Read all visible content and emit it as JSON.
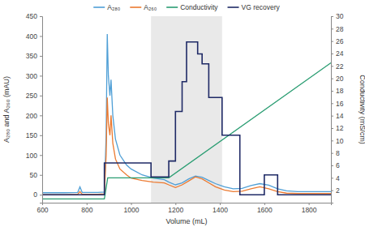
{
  "chart_data": {
    "type": "line",
    "xlabel": "Volume (mL)",
    "ylabel": "A₂₈₀ and A₂₆₀ (mAU)",
    "y2label": "Conductivity (mS/cm)",
    "xlim": [
      600,
      1900
    ],
    "xticks": [
      600,
      800,
      1000,
      1200,
      1400,
      1600,
      1800
    ],
    "ylim": [
      -20,
      450
    ],
    "yticks": [
      0,
      50,
      100,
      150,
      200,
      250,
      300,
      350,
      400,
      450
    ],
    "y2lim": [
      0,
      30
    ],
    "y2ticks": [
      2,
      4,
      6,
      8,
      10,
      12,
      14,
      16,
      18,
      20,
      22,
      24,
      26,
      28,
      30
    ],
    "highlight_x": [
      1090,
      1410
    ],
    "legend": "top",
    "grid": false,
    "series": [
      {
        "name": "A₂₈₀",
        "color": "#4f9fd6",
        "x": [
          600,
          700,
          760,
          770,
          780,
          850,
          880,
          888,
          893,
          898,
          905,
          910,
          918,
          930,
          950,
          980,
          1000,
          1050,
          1100,
          1150,
          1170,
          1200,
          1230,
          1260,
          1290,
          1320,
          1350,
          1380,
          1420,
          1460,
          1500,
          1540,
          1580,
          1620,
          1660,
          1700,
          1750,
          1800,
          1850,
          1900
        ],
        "values": [
          5,
          5,
          6,
          20,
          6,
          6,
          7,
          150,
          405,
          300,
          250,
          290,
          200,
          140,
          100,
          75,
          65,
          50,
          42,
          38,
          32,
          25,
          30,
          40,
          47,
          44,
          36,
          28,
          20,
          15,
          16,
          23,
          28,
          24,
          15,
          10,
          8,
          8,
          8,
          8
        ]
      },
      {
        "name": "A₂₆₀",
        "color": "#ec7a30",
        "x": [
          600,
          700,
          760,
          770,
          780,
          850,
          880,
          888,
          893,
          898,
          905,
          910,
          918,
          930,
          950,
          980,
          1000,
          1050,
          1100,
          1150,
          1170,
          1200,
          1230,
          1260,
          1290,
          1320,
          1350,
          1380,
          1420,
          1460,
          1500,
          1540,
          1580,
          1620,
          1660,
          1700,
          1750,
          1800,
          1850,
          1900
        ],
        "values": [
          0,
          0,
          1,
          8,
          1,
          1,
          2,
          100,
          245,
          180,
          150,
          200,
          130,
          90,
          65,
          50,
          42,
          36,
          32,
          30,
          25,
          18,
          25,
          35,
          45,
          40,
          30,
          20,
          12,
          8,
          9,
          15,
          20,
          15,
          8,
          4,
          3,
          3,
          3,
          3
        ]
      },
      {
        "name": "Conductivity",
        "color": "#2a9d72",
        "axis": "y2",
        "x": [
          600,
          880,
          895,
          1170,
          1900
        ],
        "values": [
          0.6,
          0.6,
          4.0,
          4.0,
          22.5
        ]
      },
      {
        "name": "VG recovery",
        "color": "#1f2a66",
        "line_style": "step",
        "x": [
          600,
          880,
          1090,
          1170,
          1200,
          1230,
          1250,
          1300,
          1320,
          1350,
          1410,
          1490,
          1600,
          1660,
          1900
        ],
        "values": [
          0,
          80,
          45,
          85,
          210,
          285,
          385,
          355,
          330,
          245,
          150,
          0,
          50,
          0,
          0
        ]
      }
    ]
  }
}
